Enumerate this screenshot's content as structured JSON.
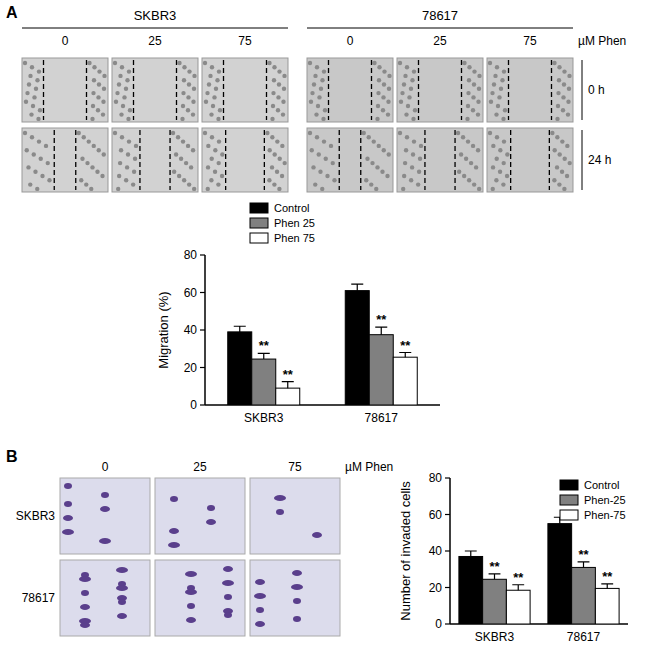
{
  "figure": {
    "panel_a": {
      "label": "A",
      "cell_lines": [
        "SKBR3",
        "78617"
      ],
      "doses": [
        0,
        25,
        75
      ],
      "dose_unit": "µM Phen",
      "times": [
        "0 h",
        "24 h"
      ]
    },
    "panel_b": {
      "label": "B",
      "cell_lines": [
        "SKBR3",
        "78617"
      ],
      "doses": [
        0,
        25,
        75
      ],
      "dose_unit": "µM Phen"
    }
  },
  "chart_data": [
    {
      "type": "bar",
      "y_label": "Migration (%)",
      "categories": [
        "SKBR3",
        "78617"
      ],
      "series": [
        {
          "name": "Control",
          "color": "#000000",
          "values": [
            39,
            61
          ],
          "errors": [
            3,
            3.5
          ]
        },
        {
          "name": "Phen 25",
          "color": "#808080",
          "values": [
            24.5,
            37.5
          ],
          "errors": [
            3,
            4
          ],
          "annotations": [
            "**",
            "**"
          ]
        },
        {
          "name": "Phen 75",
          "color": "#ffffff",
          "values": [
            9,
            25.5
          ],
          "errors": [
            3.5,
            2.5
          ],
          "annotations": [
            "**",
            "**"
          ]
        }
      ],
      "ylim": [
        0,
        80
      ],
      "yticks": [
        0,
        20,
        40,
        60,
        80
      ],
      "legend": "top-left",
      "grid": false
    },
    {
      "type": "bar",
      "y_label": "Number of invaded cells",
      "categories": [
        "SKBR3",
        "78617"
      ],
      "series": [
        {
          "name": "Control",
          "color": "#000000",
          "values": [
            37,
            55
          ],
          "errors": [
            3,
            3.5
          ]
        },
        {
          "name": "Phen-25",
          "color": "#808080",
          "values": [
            24.5,
            31
          ],
          "errors": [
            3,
            3
          ],
          "annotations": [
            "**",
            "**"
          ]
        },
        {
          "name": "Phen-75",
          "color": "#ffffff",
          "values": [
            18.5,
            19.5
          ],
          "errors": [
            3,
            2.5
          ],
          "annotations": [
            "**",
            "**"
          ]
        }
      ],
      "ylim": [
        0,
        80
      ],
      "yticks": [
        0,
        20,
        40,
        60,
        80
      ],
      "legend": "top-right",
      "grid": false
    }
  ]
}
